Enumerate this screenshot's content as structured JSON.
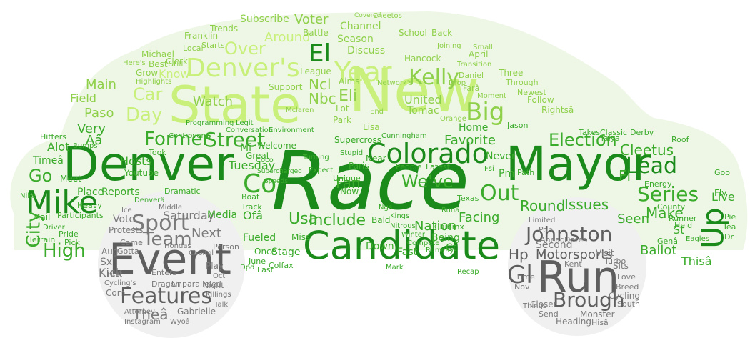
{
  "colors": {
    "body_bg": "#eef7e6",
    "wheel_bg": "#f0f0f0",
    "green_dark": "#1a8a1a",
    "green_mid": "#3aab2a",
    "green_light": "#8fd04a",
    "lime": "#c8f07a",
    "gray_dark": "#5e5e5e",
    "gray_mid": "#7a7a7a"
  },
  "words": {
    "race": "Race",
    "new": "New",
    "state": "State",
    "denver": "Denver",
    "mayor": "Mayor",
    "candidate": "Candidate",
    "run": "Run",
    "event": "Event",
    "colorado": "Colorado",
    "year": "Year",
    "denvers": "Denver's",
    "up": "Up",
    "mike": "Mike",
    "sport": "Sport",
    "features": "Features",
    "johnston": "Johnston",
    "brough": "Brough",
    "gl": "Gl",
    "team": "Team",
    "election": "Election",
    "series": "Series",
    "street": "Street",
    "former": "Former",
    "kelly": "Kelly",
    "big": "Big",
    "el": "El",
    "city": "City",
    "high": "High",
    "co": "Co",
    "out": "Out",
    "voter": "Voter",
    "over": "Over",
    "car": "Car",
    "day": "Day",
    "lead": "Lead",
    "weve": "We've",
    "include": "Include",
    "round": "Round",
    "issues": "Issues",
    "motorsports": "Motorsports",
    "fan": "Fan",
    "favorite": "Favorite",
    "ncl": "Ncl",
    "nbc": "Nbc",
    "eli": "Eli",
    "usa": "Usa",
    "around": "Around",
    "watch": "Watch",
    "go": "Go",
    "nation": "Nation",
    "facing": "Facing",
    "make": "Make",
    "ballot": "Ballot",
    "thisa": "Thisâ",
    "hp": "Hp",
    "next": "Next",
    "saturday": "Saturday",
    "thea": "Theâ",
    "kick": "Kick",
    "very": "Very",
    "hosts": "Hosts",
    "tuesday": "Tuesday",
    "paso": "Paso",
    "know": "Know",
    "main": "Main",
    "field": "Field",
    "alot": "Alot",
    "timea": "Timeâ",
    "aa": "Aâ",
    "subscribe": "Subscribe",
    "channel": "Channel",
    "discuss": "Discuss",
    "season": "Season",
    "united": "United",
    "tomac": "Tomac",
    "home": "Home",
    "never": "Never",
    "being": "Being",
    "fast": "Fast",
    "down": "Down",
    "stage": "Stage",
    "fueled": "Fueled",
    "reports": "Reports",
    "place": "Place",
    "youtube": "Youtube",
    "media": "Media",
    "welcome": "Welcome",
    "great": "Great",
    "supercross": "Supercross",
    "cleetus": "Cleetus",
    "fl": "Fl",
    "seen": "Seen",
    "st": "St",
    "live": "Live",
    "second": "Second",
    "visit": "Visit",
    "sits": "Sits",
    "closer": "Closer",
    "monster": "Monster",
    "cycling": "Cycling",
    "heading": "Heading",
    "protests": "Protests",
    "vote": "Vote",
    "play": "Play",
    "gabrielle": "Gabrielle",
    "com": "Com",
    "sx": "Sx",
    "aug": "Aug",
    "hancock": "Hancock",
    "battle": "Battle",
    "school": "School",
    "trends": "Trends",
    "clerk": "Clerk",
    "franklin": "Franklin",
    "michael": "Michael",
    "best": "Best",
    "grow": "Grow",
    "still": "Still",
    "support": "Support",
    "aims": "Aims",
    "park": "Park",
    "lot": "Lot",
    "lisa": "Lisa",
    "league": "League",
    "back": "Back",
    "april": "April",
    "three": "Three",
    "follow": "Follow",
    "newest": "Newest",
    "rightsa": "Rightsâ",
    "through": "Through",
    "paris": "Paris",
    "now": "Now",
    "miss": "Miss",
    "once": "Once",
    "june": "June",
    "last": "Last",
    "colfax": "Colfax",
    "bald": "Bald",
    "unique": "Unique",
    "near": "Near",
    "boat": "Boat",
    "track": "Track",
    "took": "Took",
    "hitters": "Hitters",
    "mail": "Mail",
    "pride": "Pride",
    "pick": "Pick",
    "terrain": "Terrain",
    "participants": "Participants",
    "heavy": "Heavy",
    "meet": "Meet",
    "bumps": "Bumps",
    "mi": "Mi",
    "ofa": "Ofâ",
    "latest": "Latest",
    "people": "People",
    "pm": "Pm",
    "takes": "Takes",
    "classic": "Classic",
    "derby": "Derby",
    "energy": "Energy",
    "county": "County",
    "runner": "Runner",
    "held": "Held",
    "fly": "Fly",
    "tea": "Tea",
    "dr": "Dr",
    "pie": "Pie",
    "goo": "Goo",
    "roof": "Roof",
    "ahead": "Ahead",
    "dates": "Dates",
    "kent": "Kent",
    "turbo": "Turbo",
    "pop": "Pop",
    "limited": "Limited",
    "time": "Time",
    "nov": "Nov",
    "send": "Send",
    "love": "Love",
    "breed": "Breed",
    "south": "South",
    "hisa": "Hisâ",
    "things": "Things",
    "middle": "Middle",
    "came": "Came",
    "gotta": "Gotta",
    "enters": "Enters",
    "dragon": "Dragon",
    "night": "Night",
    "unparalleled": "Unparalleled",
    "cyclings": "Cycling's",
    "first": "First",
    "instagram": "Instagram",
    "attorney": "Attorney",
    "dramatic": "Dramatic",
    "capitol": "Capitol",
    "hondas": "Hondas",
    "person": "Person",
    "killings": "Killings",
    "oct": "Oct",
    "talk": "Talk",
    "clubmx": "Clubmx",
    "texas": "Texas",
    "path": "Path",
    "runway": "Runway",
    "compete": "Compete",
    "winter": "Winter",
    "recap": "Recap",
    "nitrous": "Nitrous",
    "kings": "Kings",
    "expect": "Expect",
    "turning": "Turning",
    "stupid": "Stupid",
    "joining": "Joining",
    "transition": "Transition",
    "moment": "Moment",
    "daniel": "Daniel",
    "jason": "Jason",
    "end": "End",
    "cunningham": "Cunningham",
    "orange": "Orange",
    "mclaren": "Mclaren",
    "environment": "Environment",
    "programming": "Programming",
    "legit": "Legit",
    "conversation": "Conversation",
    "controversy": "Controversy",
    "starts": "Starts",
    "local": "Local",
    "highlights": "Highlights",
    "cheetos": "Cheetos",
    "covered": "Covered",
    "supercharged": "Supercharged",
    "speeds": "Speeds",
    "dpd": "Dpd",
    "wyoa": "Wyoâ",
    "ice": "Ice",
    "genà": "Genâ",
    "runaa": "Runâ",
    "talya": "Talya",
    "drop": "Drop",
    "fsi": "Fsi",
    "eagles": "Eagles",
    "mark": "Mark",
    "ct": "Ct",
    "ngs": "Ngs",
    "fara": "Farâ",
    "networks": "Network's",
    "small": "Small",
    "coco": "Coco",
    "driver": "Driver",
    "nike": "Nike",
    "denvera": "Denverâ",
    "heres": "Here's"
  }
}
